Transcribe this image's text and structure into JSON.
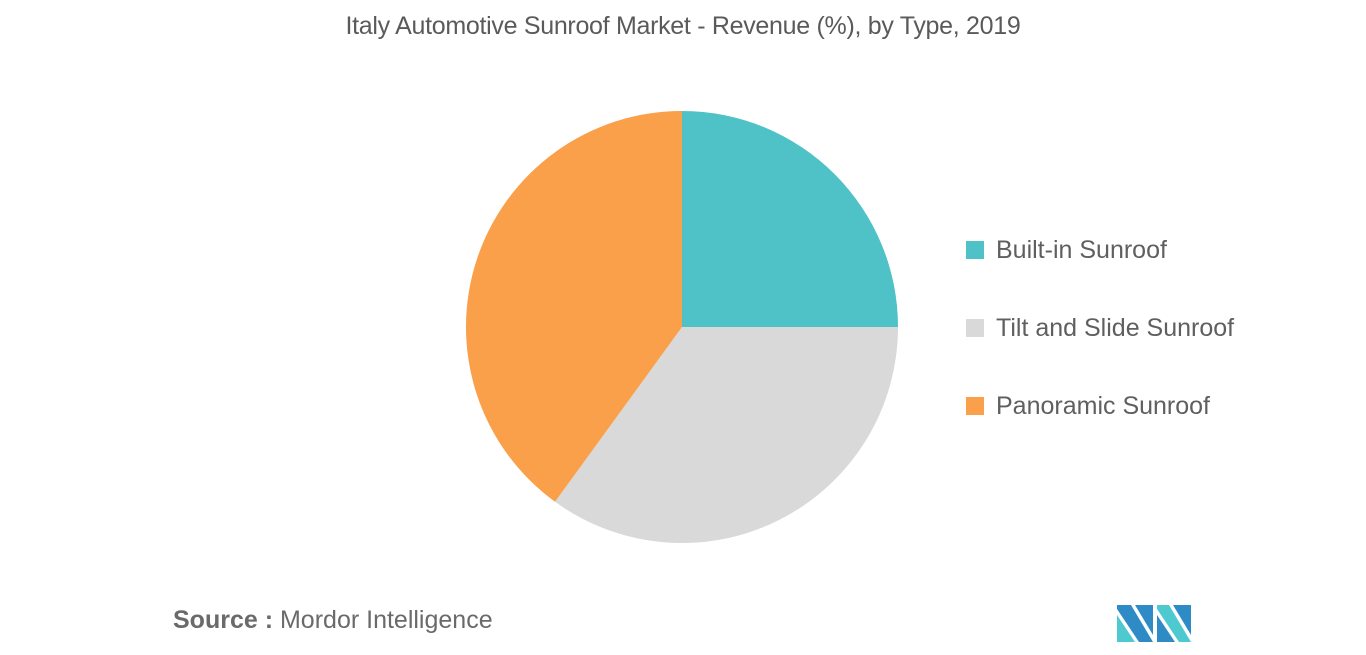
{
  "title": "Italy Automotive Sunroof Market - Revenue (%), by Type, 2019",
  "legend": {
    "items": [
      {
        "label": "Built-in Sunroof",
        "color": "#4fc2c8"
      },
      {
        "label": "Tilt and Slide Sunroof",
        "color": "#d9d9d9"
      },
      {
        "label": "Panoramic Sunroof",
        "color": "#fa9f4a"
      }
    ]
  },
  "source": {
    "prefix": "Source :",
    "name": "Mordor Intelligence"
  },
  "logo": {
    "icon": "mordor-intelligence-logo",
    "colors": [
      "#2e8bc6",
      "#4fc9d0"
    ]
  },
  "chart_data": {
    "type": "pie",
    "title": "Italy Automotive Sunroof Market - Revenue (%), by Type, 2019",
    "categories": [
      "Built-in Sunroof",
      "Tilt and Slide Sunroof",
      "Panoramic Sunroof"
    ],
    "values": [
      25,
      35,
      40
    ],
    "colors": [
      "#4fc2c8",
      "#d9d9d9",
      "#fa9f4a"
    ],
    "start_angle": "12 o'clock, clockwise",
    "legend_position": "right",
    "data_labels": false
  }
}
